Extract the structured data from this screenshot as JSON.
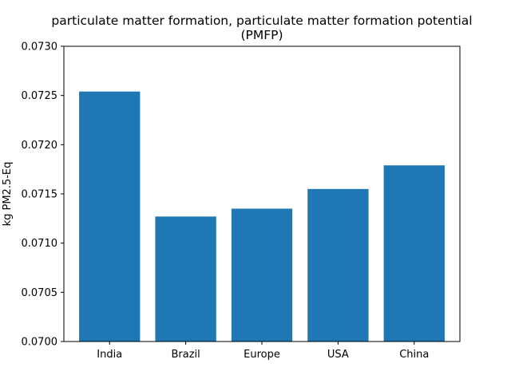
{
  "chart_data": {
    "type": "bar",
    "title_line1": "particulate matter formation, particulate matter formation potential",
    "title_line2": "(PMFP)",
    "xlabel": "",
    "ylabel": "kg PM2.5-Eq",
    "categories": [
      "India",
      "Brazil",
      "Europe",
      "USA",
      "China"
    ],
    "values": [
      0.07254,
      0.07127,
      0.07135,
      0.07155,
      0.07179
    ],
    "ylim": [
      0.07,
      0.073
    ],
    "yticks": [
      "0.0700",
      "0.0705",
      "0.0710",
      "0.0715",
      "0.0720",
      "0.0725",
      "0.0730"
    ],
    "bar_color": "#1f77b4",
    "grid": false
  }
}
